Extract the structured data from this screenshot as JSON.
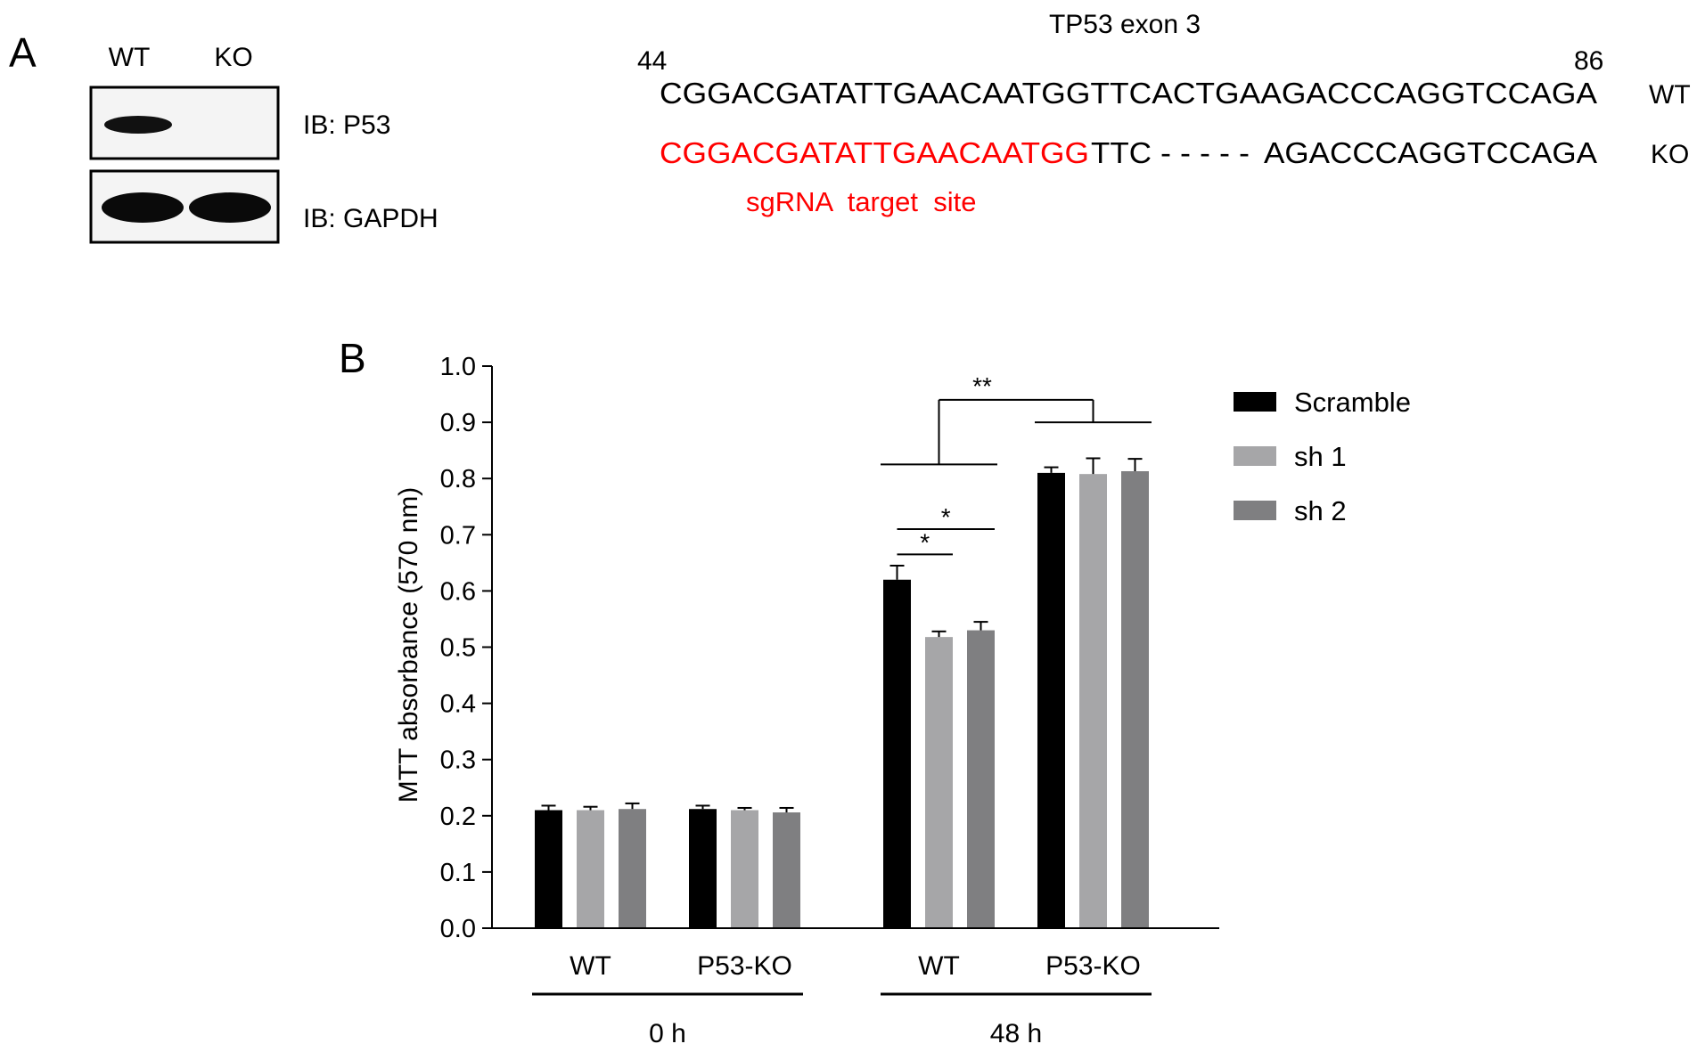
{
  "panel_a": {
    "label": "A",
    "blot": {
      "lanes": [
        "WT",
        "KO"
      ],
      "rows": [
        {
          "label": "IB: P53",
          "bands": [
            1,
            0
          ]
        },
        {
          "label": "IB: GAPDH",
          "bands": [
            1,
            1
          ]
        }
      ]
    },
    "sequence": {
      "title": "TP53 exon 3",
      "start_pos": "44",
      "end_pos": "86",
      "wt_seq": "CGGACGATATTGAACAATGGTTCACTGAAGACCCAGGTCCAGA",
      "wt_label": "WT",
      "ko_target": "CGGACGATATTGAACAATGG",
      "ko_mid": "TTC",
      "ko_gap": "- - - - -",
      "ko_rest": "AGACCCAGGTCCAGA",
      "ko_label": "KO",
      "sgrna_label": "sgRNA  target  site",
      "highlight_color": "#ff0000"
    }
  },
  "chart_data": {
    "type": "bar",
    "panel_label": "B",
    "ylabel": "MTT absorbance (570 nm)",
    "ylim": [
      0,
      1.0
    ],
    "yticks": [
      "0.0",
      "0.1",
      "0.2",
      "0.3",
      "0.4",
      "0.5",
      "0.6",
      "0.7",
      "0.8",
      "0.9",
      "1.0"
    ],
    "categories": [
      "WT",
      "P53-KO",
      "WT",
      "P53-KO"
    ],
    "time_groups": [
      {
        "label": "0 h",
        "categories": [
          0,
          1
        ]
      },
      {
        "label": "48 h",
        "categories": [
          2,
          3
        ]
      }
    ],
    "series": [
      {
        "name": "Scramble",
        "color": "#000000",
        "values": [
          0.21,
          0.212,
          0.62,
          0.81
        ],
        "errors": [
          0.008,
          0.006,
          0.025,
          0.01
        ]
      },
      {
        "name": "sh 1",
        "color": "#a6a6a8",
        "values": [
          0.21,
          0.21,
          0.518,
          0.808
        ],
        "errors": [
          0.006,
          0.004,
          0.01,
          0.028
        ]
      },
      {
        "name": "sh 2",
        "color": "#7f7f81",
        "values": [
          0.212,
          0.206,
          0.53,
          0.813
        ],
        "errors": [
          0.01,
          0.008,
          0.015,
          0.022
        ]
      }
    ],
    "significance": [
      {
        "label": "*",
        "from": {
          "category": 2,
          "series": 0
        },
        "to": {
          "category": 2,
          "series": 1
        },
        "level": 0.665
      },
      {
        "label": "*",
        "from": {
          "category": 2,
          "series": 0
        },
        "to": {
          "category": 2,
          "series": 2
        },
        "level": 0.71
      },
      {
        "label": "**",
        "from_group": 2,
        "to_group": 3,
        "level": 0.9,
        "group_level": 0.825
      }
    ],
    "legend_position": "top-right",
    "grid": false
  }
}
